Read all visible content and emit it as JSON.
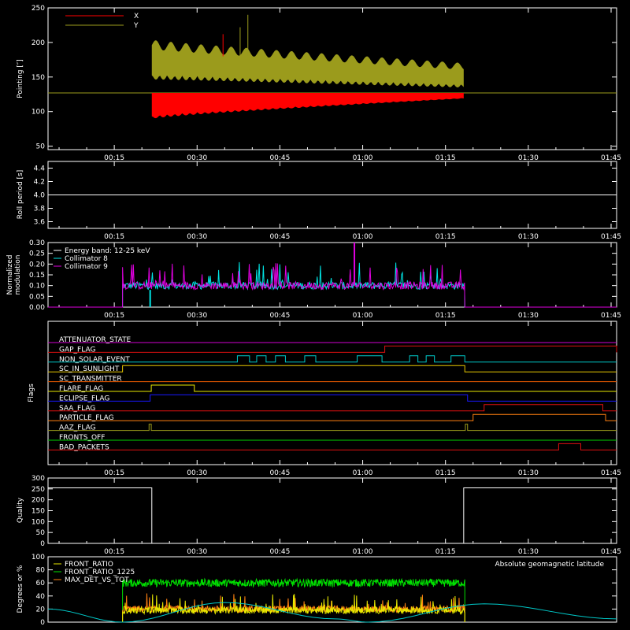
{
  "time_ticks": [
    "00:15",
    "00:30",
    "00:45",
    "01:00",
    "01:15",
    "01:30",
    "01:45"
  ],
  "panels": {
    "pointing": {
      "ylabel": "Pointing [″]",
      "yticks": [
        "50",
        "100",
        "150",
        "200",
        "250"
      ],
      "ylim": [
        45,
        250
      ],
      "legend": [
        {
          "label": "X",
          "color": "#ff0000"
        },
        {
          "label": "Y",
          "color": "#9b9b1c"
        }
      ]
    },
    "roll": {
      "ylabel": "Roll period [s]",
      "yticks": [
        "3.6",
        "3.8",
        "4.0",
        "4.2",
        "4.4"
      ],
      "ylim": [
        3.5,
        4.5
      ],
      "value": 4.0
    },
    "modulation": {
      "ylabel_line1": "Normalized",
      "ylabel_line2": "modulation",
      "yticks": [
        "0.00",
        "0.05",
        "0.10",
        "0.15",
        "0.20",
        "0.25",
        "0.30"
      ],
      "ylim": [
        0,
        0.3
      ],
      "legend": [
        {
          "label": "Energy band: 12-25 keV",
          "color": "#ffffff"
        },
        {
          "label": "Collimator 8",
          "color": "#00e5e5"
        },
        {
          "label": "Collimator 9",
          "color": "#e000e0"
        }
      ]
    },
    "flags": {
      "ylabel": "Flags",
      "items": [
        {
          "label": "ATTENUATOR_STATE",
          "color": "#d000d0",
          "segments": []
        },
        {
          "label": "GAP_FLAG",
          "color": "#e01010",
          "segments": [
            [
              64,
              106
            ]
          ]
        },
        {
          "label": "NON_SOLAR_EVENT",
          "color": "#00c8c8",
          "segments": [
            [
              37.3,
              39.5
            ],
            [
              40.8,
              42.5
            ],
            [
              44.2,
              46
            ],
            [
              49.5,
              51.5
            ],
            [
              59,
              63.5
            ],
            [
              68.5,
              70
            ],
            [
              71.5,
              73
            ],
            [
              76,
              78.5
            ]
          ]
        },
        {
          "label": "SC_IN_SUNLIGHT",
          "color": "#e8c800",
          "segments": [
            [
              16.5,
              78.5
            ]
          ]
        },
        {
          "label": "SC_TRANSMITTER",
          "color": "#e85a00",
          "segments": []
        },
        {
          "label": "FLARE_FLAG",
          "color": "#e8e800",
          "segments": [
            [
              21.7,
              29.5
            ]
          ]
        },
        {
          "label": "ECLIPSE_FLAG",
          "color": "#1818ff",
          "segments": [
            [
              21.5,
              79
            ]
          ]
        },
        {
          "label": "SAA_FLAG",
          "color": "#e01010",
          "segments": [
            [
              82,
              103.5
            ]
          ]
        },
        {
          "label": "PARTICLE_FLAG",
          "color": "#ff8010",
          "segments": [
            [
              80,
              104
            ]
          ]
        },
        {
          "label": "AAZ_FLAG",
          "color": "#9b9b1c",
          "segments": [
            [
              21.3,
              21.7
            ],
            [
              78.6,
              79
            ]
          ]
        },
        {
          "label": "FRONTS_OFF",
          "color": "#00d000",
          "segments": []
        },
        {
          "label": "BAD_PACKETS",
          "color": "#e01010",
          "segments": [
            [
              95.5,
              99.5
            ]
          ]
        }
      ]
    },
    "quality": {
      "ylabel": "Quality",
      "yticks": [
        "0",
        "50",
        "100",
        "150",
        "200",
        "250",
        "300"
      ],
      "ylim": [
        0,
        300
      ],
      "high": 255,
      "high_ranges": [
        [
          0,
          21.8
        ],
        [
          78.3,
          106
        ]
      ]
    },
    "ratios": {
      "ylabel": "Degrees or %",
      "yticks": [
        "0",
        "20",
        "40",
        "60",
        "80",
        "100"
      ],
      "ylim": [
        0,
        100
      ],
      "legend": [
        {
          "label": "FRONT_RATIO",
          "color": "#e8e800"
        },
        {
          "label": "FRONT_RATIO_1225",
          "color": "#00e000"
        },
        {
          "label": "MAX_DET_VS_TOT",
          "color": "#ff8010"
        }
      ],
      "right_label": {
        "label": "Absolute geomagnetic latitude",
        "color": "#00c8c8"
      }
    }
  },
  "chart_data": [
    {
      "type": "line",
      "xunit": "minutes",
      "xlim": [
        3,
        106
      ],
      "ylim": [
        45,
        250
      ],
      "series": [
        {
          "name": "X",
          "color": "#ff0000",
          "baseline": 127,
          "x_active": [
            21.8,
            78.3
          ],
          "mean_start": 105,
          "mean_end": 122,
          "amp_start": 25,
          "amp_end": 5
        },
        {
          "name": "Y",
          "color": "#9b9b1c",
          "baseline": 128,
          "x_active": [
            21.8,
            78.3
          ],
          "mean_start": 175,
          "mean_end": 150,
          "amp_start": 40,
          "amp_end": 28
        }
      ]
    },
    {
      "type": "line",
      "xunit": "minutes",
      "xlim": [
        3,
        106
      ],
      "ylim": [
        3.5,
        4.5
      ],
      "series": [
        {
          "color": "#ffffff",
          "x": [
            3,
            106
          ],
          "y": [
            4.0,
            4.0
          ]
        }
      ]
    },
    {
      "type": "line",
      "xunit": "minutes",
      "xlim": [
        3,
        106
      ],
      "ylim": [
        0,
        0.3
      ],
      "series": [
        {
          "name": "Collimator 8",
          "color": "#00e5e5",
          "x_active": [
            16.5,
            78.5
          ],
          "mean": 0.1
        },
        {
          "name": "Collimator 9",
          "color": "#e000e0",
          "x_active": [
            16.5,
            78.5
          ],
          "mean": 0.1
        }
      ]
    },
    {
      "type": "line",
      "xunit": "minutes",
      "xlim": [
        3,
        106
      ],
      "ylim": [
        0,
        100
      ],
      "series": [
        {
          "name": "FRONT_RATIO_1225",
          "color": "#00e000",
          "x_active": [
            16.5,
            78.5
          ],
          "mean": 60
        },
        {
          "name": "MAX_DET_VS_TOT",
          "color": "#ff8010",
          "x_active": [
            16.5,
            78.5
          ],
          "mean": 20
        },
        {
          "name": "FRONT_RATIO",
          "color": "#e8e800",
          "x_active": [
            16.5,
            78.5
          ],
          "mean": 18
        },
        {
          "name": "Absolute geomagnetic latitude",
          "color": "#00c8c8",
          "x": [
            3,
            16.5,
            35,
            55,
            61,
            82,
            106
          ],
          "y": [
            20,
            0,
            30,
            5,
            0,
            28,
            5
          ]
        }
      ]
    }
  ]
}
